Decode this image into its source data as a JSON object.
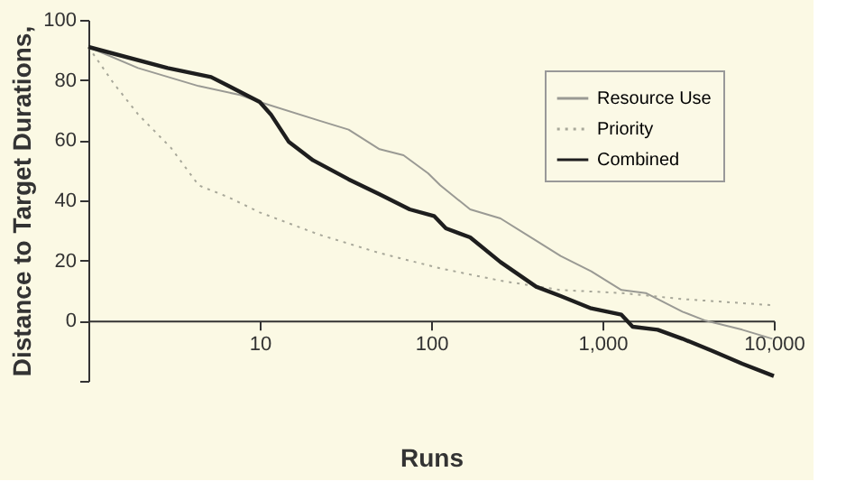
{
  "chart_data": {
    "type": "line",
    "xlabel": "Runs",
    "ylabel": "Distance to Target Durations,",
    "log": "x",
    "xlim": [
      1,
      10000
    ],
    "xticks": [
      {
        "value": 1,
        "label": null
      },
      10,
      100,
      {
        "value": 1000,
        "label": "1,000"
      },
      {
        "value": 10000,
        "label": "10,000"
      }
    ],
    "ylim": [
      -20,
      100
    ],
    "yticks": [
      {
        "value": -20,
        "label": null
      },
      0,
      20,
      40,
      60,
      80,
      100
    ],
    "grid": false,
    "legend": "top right",
    "marker": "none",
    "series": [
      {
        "name": "Resource Use",
        "color": "#9a9a94",
        "line_style": "solid",
        "x": [
          1,
          1.95,
          4.4,
          7.7,
          10,
          22,
          33,
          50,
          69,
          96,
          113,
          169,
          254,
          410,
          570,
          860,
          1290,
          1790,
          2930,
          4000,
          6540,
          9800
        ],
        "values": [
          91,
          84,
          78,
          75,
          72.7,
          66.6,
          63.5,
          57,
          55,
          49,
          45,
          37,
          34,
          26.6,
          21.5,
          16.4,
          10.2,
          9.2,
          3,
          0,
          -3,
          -6
        ]
      },
      {
        "name": "Priority",
        "color": "#a8a89a",
        "line_style": "dotted",
        "x": [
          1,
          1.4,
          1.95,
          3.04,
          4.4,
          6.6,
          10,
          22,
          50,
          113,
          254,
          570,
          1290,
          2930,
          10000
        ],
        "values": [
          91,
          79,
          68.6,
          57.4,
          45,
          41,
          36,
          28.7,
          22.5,
          17.4,
          13.3,
          10.2,
          9.2,
          7.2,
          5.1
        ]
      },
      {
        "name": "Combined",
        "color": "#1e1e1e",
        "line_style": "solid",
        "x": [
          1,
          2.9,
          5.2,
          10,
          11.6,
          14.8,
          20.5,
          33,
          50,
          75,
          104,
          122,
          169,
          254,
          410,
          570,
          860,
          1290,
          1500,
          2100,
          2930,
          4370,
          6540,
          10000
        ],
        "values": [
          91,
          84,
          81,
          72.7,
          68.6,
          59.4,
          53.3,
          47,
          42,
          37,
          34.8,
          30.7,
          27.7,
          19.5,
          11.3,
          8.2,
          4.1,
          2,
          -2,
          -3,
          -6,
          -10,
          -14.3,
          -18.4
        ]
      }
    ]
  }
}
